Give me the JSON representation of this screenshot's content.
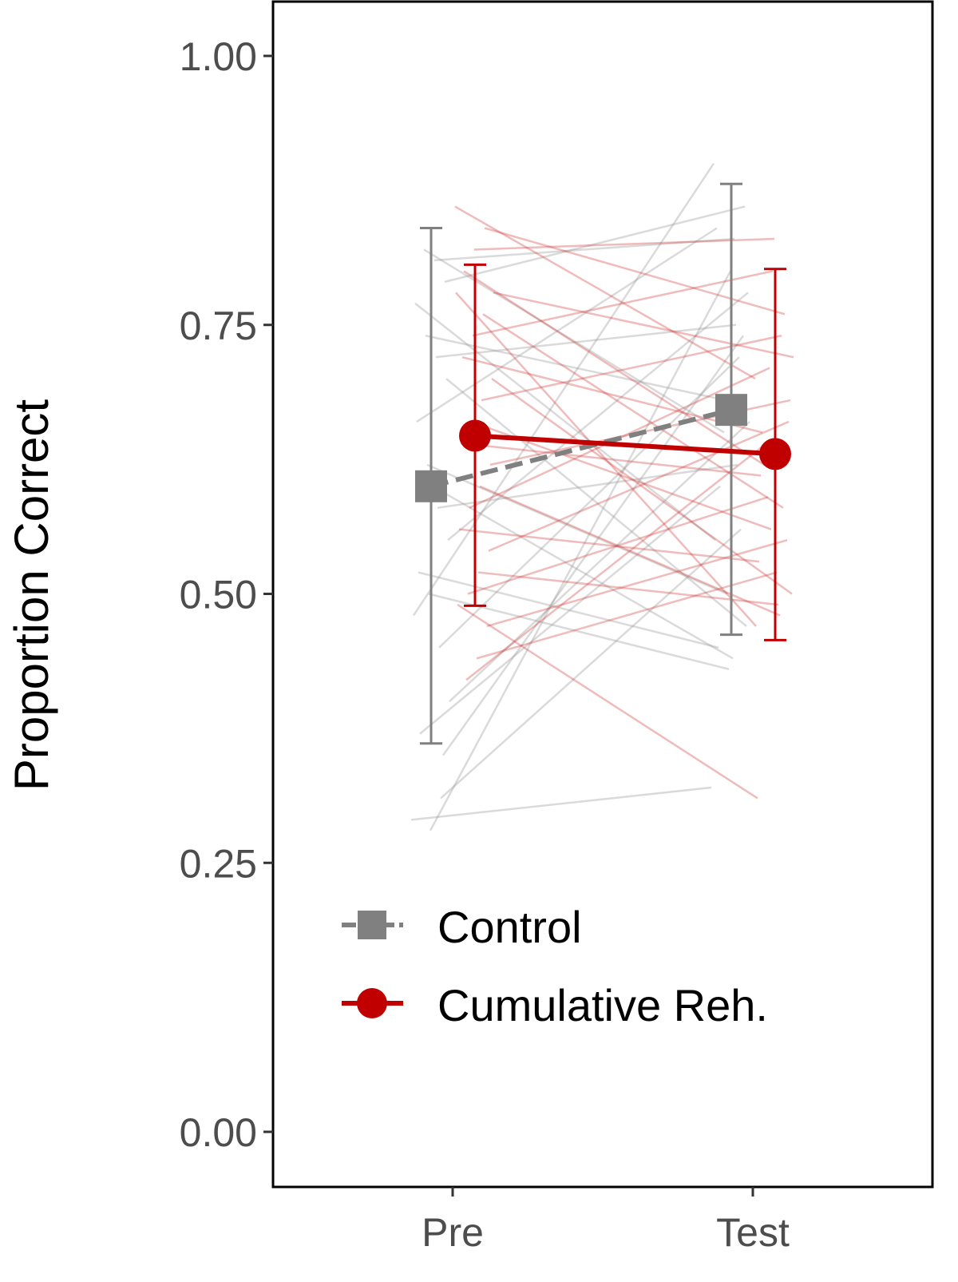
{
  "chart_data": {
    "type": "line",
    "title": "",
    "xlabel": "",
    "ylabel": "Proportion Correct",
    "categories": [
      "Pre",
      "Test"
    ],
    "ylim": [
      -0.05,
      1.05
    ],
    "yticks": [
      "0.00",
      "0.25",
      "0.50",
      "0.75",
      "1.00"
    ],
    "grid": false,
    "legend_position": "bottom-left inside",
    "series": [
      {
        "name": "Control",
        "color": "#808080",
        "marker": "square",
        "linestyle": "dashed",
        "values": [
          0.6,
          0.671
        ],
        "error_low": [
          0.361,
          0.462
        ],
        "error_high": [
          0.84,
          0.881
        ],
        "individuals": [
          [
            0.29,
            0.32
          ],
          [
            0.31,
            0.56
          ],
          [
            0.28,
            0.8
          ],
          [
            0.37,
            0.6
          ],
          [
            0.4,
            0.66
          ],
          [
            0.45,
            0.72
          ],
          [
            0.5,
            0.43
          ],
          [
            0.52,
            0.45
          ],
          [
            0.55,
            0.78
          ],
          [
            0.58,
            0.62
          ],
          [
            0.62,
            0.5
          ],
          [
            0.66,
            0.84
          ],
          [
            0.7,
            0.47
          ],
          [
            0.72,
            0.75
          ],
          [
            0.74,
            0.68
          ],
          [
            0.77,
            0.55
          ],
          [
            0.79,
            0.86
          ],
          [
            0.81,
            0.83
          ],
          [
            0.82,
            0.65
          ],
          [
            0.48,
            0.9
          ],
          [
            0.35,
            0.74
          ],
          [
            0.6,
            0.44
          ]
        ]
      },
      {
        "name": "Cumulative Reh.",
        "color": "#c00000",
        "marker": "circle",
        "linestyle": "solid",
        "values": [
          0.647,
          0.63
        ],
        "error_low": [
          0.489,
          0.457
        ],
        "error_high": [
          0.806,
          0.802
        ],
        "individuals": [
          [
            0.86,
            0.7
          ],
          [
            0.84,
            0.76
          ],
          [
            0.82,
            0.83
          ],
          [
            0.8,
            0.62
          ],
          [
            0.78,
            0.72
          ],
          [
            0.76,
            0.58
          ],
          [
            0.74,
            0.8
          ],
          [
            0.72,
            0.65
          ],
          [
            0.7,
            0.5
          ],
          [
            0.68,
            0.74
          ],
          [
            0.66,
            0.56
          ],
          [
            0.64,
            0.61
          ],
          [
            0.62,
            0.68
          ],
          [
            0.6,
            0.48
          ],
          [
            0.58,
            0.71
          ],
          [
            0.56,
            0.53
          ],
          [
            0.54,
            0.66
          ],
          [
            0.52,
            0.49
          ],
          [
            0.5,
            0.59
          ],
          [
            0.49,
            0.31
          ],
          [
            0.47,
            0.55
          ],
          [
            0.44,
            0.52
          ],
          [
            0.42,
            0.64
          ],
          [
            0.78,
            0.47
          ]
        ]
      }
    ]
  }
}
